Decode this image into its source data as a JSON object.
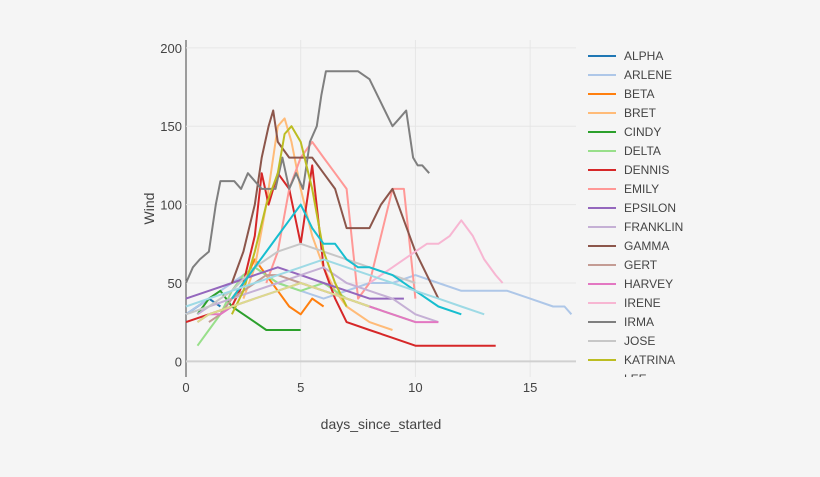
{
  "chart_data": {
    "type": "line",
    "title": "",
    "xlabel": "days_since_started",
    "ylabel": "Wind",
    "xlim": [
      0,
      17
    ],
    "ylim": [
      -10,
      205
    ],
    "x_ticks": [
      0,
      5,
      10,
      15
    ],
    "y_ticks": [
      0,
      50,
      100,
      150,
      200
    ],
    "grid": true,
    "legend_position": "right",
    "legend_truncated": true,
    "legend_partial_label": "LEE",
    "series": [
      {
        "name": "ALPHA",
        "color": "#1f77b4",
        "x": [
          0,
          0.5,
          1,
          1.5
        ],
        "y": [
          30,
          35,
          40,
          35
        ]
      },
      {
        "name": "ARLENE",
        "color": "#aec7e8",
        "x": [
          0,
          1,
          2,
          3,
          4,
          5,
          6,
          7,
          8,
          9,
          10,
          11,
          12,
          13,
          14,
          15,
          16,
          16.5,
          16.8
        ],
        "y": [
          30,
          40,
          50,
          60,
          50,
          45,
          40,
          45,
          50,
          50,
          55,
          50,
          45,
          45,
          45,
          40,
          35,
          35,
          30
        ]
      },
      {
        "name": "BETA",
        "color": "#ff7f0e",
        "x": [
          2,
          2.5,
          3,
          3.5,
          4,
          4.5,
          5,
          5.5,
          6
        ],
        "y": [
          40,
          50,
          65,
          55,
          45,
          35,
          30,
          40,
          35
        ]
      },
      {
        "name": "BRET",
        "color": "#ffbb78",
        "x": [
          2.5,
          3,
          3.5,
          4,
          4.3,
          4.6,
          5,
          5.5,
          6,
          6.5,
          7,
          8,
          9
        ],
        "y": [
          40,
          60,
          100,
          150,
          155,
          140,
          110,
          80,
          60,
          45,
          35,
          25,
          20
        ]
      },
      {
        "name": "CINDY",
        "color": "#2ca02c",
        "x": [
          0.5,
          1,
          1.5,
          2,
          2.5,
          3,
          3.5,
          4,
          5
        ],
        "y": [
          30,
          40,
          45,
          35,
          30,
          25,
          20,
          20,
          20
        ]
      },
      {
        "name": "DELTA",
        "color": "#98df8a",
        "x": [
          0.5,
          1,
          1.5,
          2,
          2.5,
          3,
          4,
          5,
          6,
          7,
          8,
          9,
          10
        ],
        "y": [
          10,
          20,
          30,
          45,
          55,
          60,
          50,
          45,
          50,
          40,
          35,
          30,
          25
        ]
      },
      {
        "name": "DENNIS",
        "color": "#d62728",
        "x": [
          0,
          1,
          2,
          2.5,
          3,
          3.3,
          3.6,
          4,
          4.5,
          5,
          5.5,
          6,
          6.5,
          7,
          8,
          9,
          10,
          11,
          12,
          13,
          13.5
        ],
        "y": [
          25,
          30,
          35,
          50,
          80,
          120,
          100,
          120,
          110,
          75,
          125,
          60,
          40,
          25,
          20,
          15,
          10,
          10,
          10,
          10,
          10
        ]
      },
      {
        "name": "EMILY",
        "color": "#ff9896",
        "x": [
          3.5,
          4,
          4.5,
          5,
          5.5,
          6,
          6.5,
          7,
          7.5,
          8,
          8.5,
          9,
          9.5,
          10
        ],
        "y": [
          50,
          70,
          110,
          130,
          140,
          130,
          120,
          110,
          40,
          50,
          80,
          110,
          110,
          40
        ]
      },
      {
        "name": "EPSILON",
        "color": "#9467bd",
        "x": [
          0,
          1,
          2,
          3,
          4,
          5,
          6,
          7,
          8,
          9,
          9.5
        ],
        "y": [
          40,
          45,
          50,
          55,
          60,
          55,
          50,
          45,
          40,
          40,
          40
        ]
      },
      {
        "name": "FRANKLIN",
        "color": "#c5b0d5",
        "x": [
          0.5,
          1,
          2,
          3,
          4,
          5,
          6,
          7,
          8,
          9,
          10,
          11
        ],
        "y": [
          30,
          35,
          40,
          45,
          50,
          55,
          60,
          50,
          45,
          40,
          30,
          25
        ]
      },
      {
        "name": "GAMMA",
        "color": "#8c564b",
        "x": [
          2,
          2.5,
          3,
          3.3,
          3.6,
          3.8,
          4,
          4.5,
          5,
          5.5,
          6,
          6.5,
          7,
          7.5,
          8,
          8.5,
          9,
          9.5,
          10,
          10.5,
          11
        ],
        "y": [
          50,
          70,
          100,
          130,
          150,
          160,
          140,
          130,
          130,
          130,
          120,
          110,
          85,
          85,
          85,
          100,
          110,
          90,
          70,
          55,
          40
        ]
      },
      {
        "name": "GERT",
        "color": "#c49c94",
        "x": [
          1,
          1.5,
          2,
          2.5,
          3,
          3.5,
          4,
          5,
          6,
          7,
          8
        ],
        "y": [
          25,
          30,
          40,
          45,
          50,
          55,
          55,
          50,
          45,
          40,
          35
        ]
      },
      {
        "name": "HARVEY",
        "color": "#e377c2",
        "x": [
          0.5,
          1,
          1.5,
          2,
          3,
          4,
          5,
          6,
          7,
          8,
          9,
          10,
          11
        ],
        "y": [
          25,
          30,
          30,
          35,
          40,
          45,
          50,
          45,
          40,
          35,
          30,
          25,
          25
        ]
      },
      {
        "name": "IRENE",
        "color": "#f7b6d2",
        "x": [
          8,
          8.5,
          9,
          9.5,
          10,
          10.5,
          11,
          11.5,
          12,
          12.5,
          13,
          13.5,
          13.8
        ],
        "y": [
          50,
          55,
          60,
          65,
          70,
          75,
          75,
          80,
          90,
          80,
          65,
          55,
          50
        ]
      },
      {
        "name": "IRMA",
        "color": "#7f7f7f",
        "x": [
          0,
          0.3,
          0.6,
          1,
          1.3,
          1.5,
          1.8,
          2.1,
          2.4,
          2.7,
          3,
          3.3,
          3.6,
          3.9,
          4.2,
          4.5,
          4.8,
          5.1,
          5.4,
          5.7,
          5.9,
          6.1,
          6.5,
          7,
          7.5,
          8,
          8.5,
          9,
          9.3,
          9.6,
          9.9,
          10.1,
          10.3,
          10.6
        ],
        "y": [
          50,
          60,
          65,
          70,
          100,
          115,
          115,
          115,
          110,
          120,
          115,
          110,
          110,
          110,
          130,
          110,
          120,
          110,
          140,
          150,
          170,
          185,
          185,
          185,
          185,
          180,
          165,
          150,
          155,
          160,
          130,
          125,
          125,
          120
        ]
      },
      {
        "name": "JOSE",
        "color": "#c7c7c7",
        "x": [
          0,
          1,
          2,
          3,
          4,
          5,
          6,
          7,
          8,
          9,
          10
        ],
        "y": [
          30,
          35,
          45,
          60,
          70,
          75,
          70,
          65,
          60,
          55,
          50
        ]
      },
      {
        "name": "KATRINA",
        "color": "#bcbd22",
        "x": [
          2,
          2.5,
          3,
          3.5,
          4,
          4.3,
          4.6,
          5,
          5.5,
          6,
          6.5,
          7
        ],
        "y": [
          30,
          45,
          70,
          100,
          120,
          145,
          150,
          140,
          110,
          70,
          50,
          35
        ]
      },
      {
        "name": "LEE",
        "color": "#dbdb8d",
        "x": [
          0.5,
          1,
          2,
          3,
          4,
          5,
          6,
          7,
          8
        ],
        "y": [
          25,
          30,
          35,
          40,
          45,
          50,
          45,
          40,
          35
        ]
      },
      {
        "name": "",
        "color": "#17becf",
        "x": [
          2,
          2.5,
          3,
          3.5,
          4,
          4.5,
          5,
          5.5,
          6,
          6.5,
          7,
          7.5,
          8,
          9,
          10,
          11,
          12
        ],
        "y": [
          40,
          50,
          60,
          70,
          80,
          90,
          100,
          85,
          75,
          75,
          65,
          60,
          60,
          55,
          45,
          35,
          30
        ]
      },
      {
        "name": "",
        "color": "#9edae5",
        "x": [
          0,
          1,
          2,
          3,
          4,
          5,
          6,
          7,
          8,
          9,
          10,
          11,
          12,
          13
        ],
        "y": [
          35,
          40,
          45,
          50,
          55,
          60,
          65,
          60,
          55,
          50,
          45,
          40,
          35,
          30
        ]
      }
    ]
  }
}
